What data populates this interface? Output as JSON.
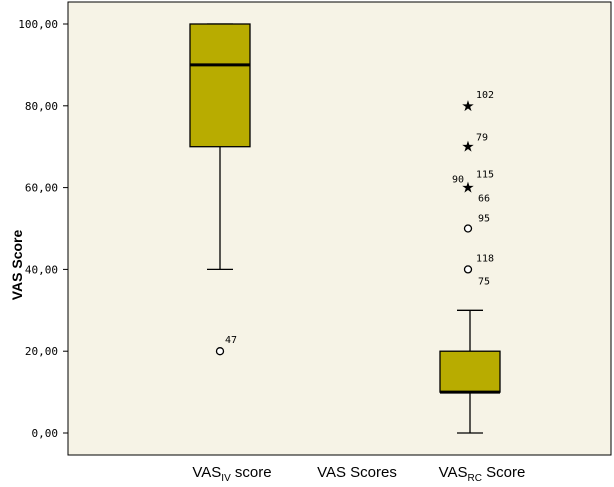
{
  "chart_data": {
    "type": "boxplot",
    "ylabel": "VAS Score",
    "xlabel": "VAS Scores",
    "ylim": [
      0,
      100
    ],
    "yticks": [
      "0,00",
      "20,00",
      "40,00",
      "60,00",
      "80,00",
      "100,00"
    ],
    "grid": false,
    "box_color": "#b8ac00",
    "series": [
      {
        "label_main": "VAS",
        "label_sub": "IV",
        "label_tail": " score",
        "min": 40,
        "q1": 70,
        "median": 90,
        "q3": 100,
        "max": 100,
        "outliers": [
          {
            "value": 20,
            "marker": "circle",
            "label": "47"
          }
        ]
      },
      {
        "label_main": "VAS",
        "label_sub": "RC",
        "label_tail": " Score",
        "min": 0,
        "q1": 10,
        "median": 10,
        "q3": 20,
        "max": 30,
        "outliers": [
          {
            "value": 40,
            "marker": "circle",
            "label": "118"
          },
          {
            "value": 40,
            "marker": "none",
            "label": "75"
          },
          {
            "value": 50,
            "marker": "circle",
            "label": "95"
          },
          {
            "value": 60,
            "marker": "star",
            "label": "90"
          },
          {
            "value": 60,
            "marker": "none",
            "label": "115"
          },
          {
            "value": 60,
            "marker": "none",
            "label": "66"
          },
          {
            "value": 70,
            "marker": "star",
            "label": "79"
          },
          {
            "value": 80,
            "marker": "star",
            "label": "102"
          }
        ]
      }
    ]
  }
}
